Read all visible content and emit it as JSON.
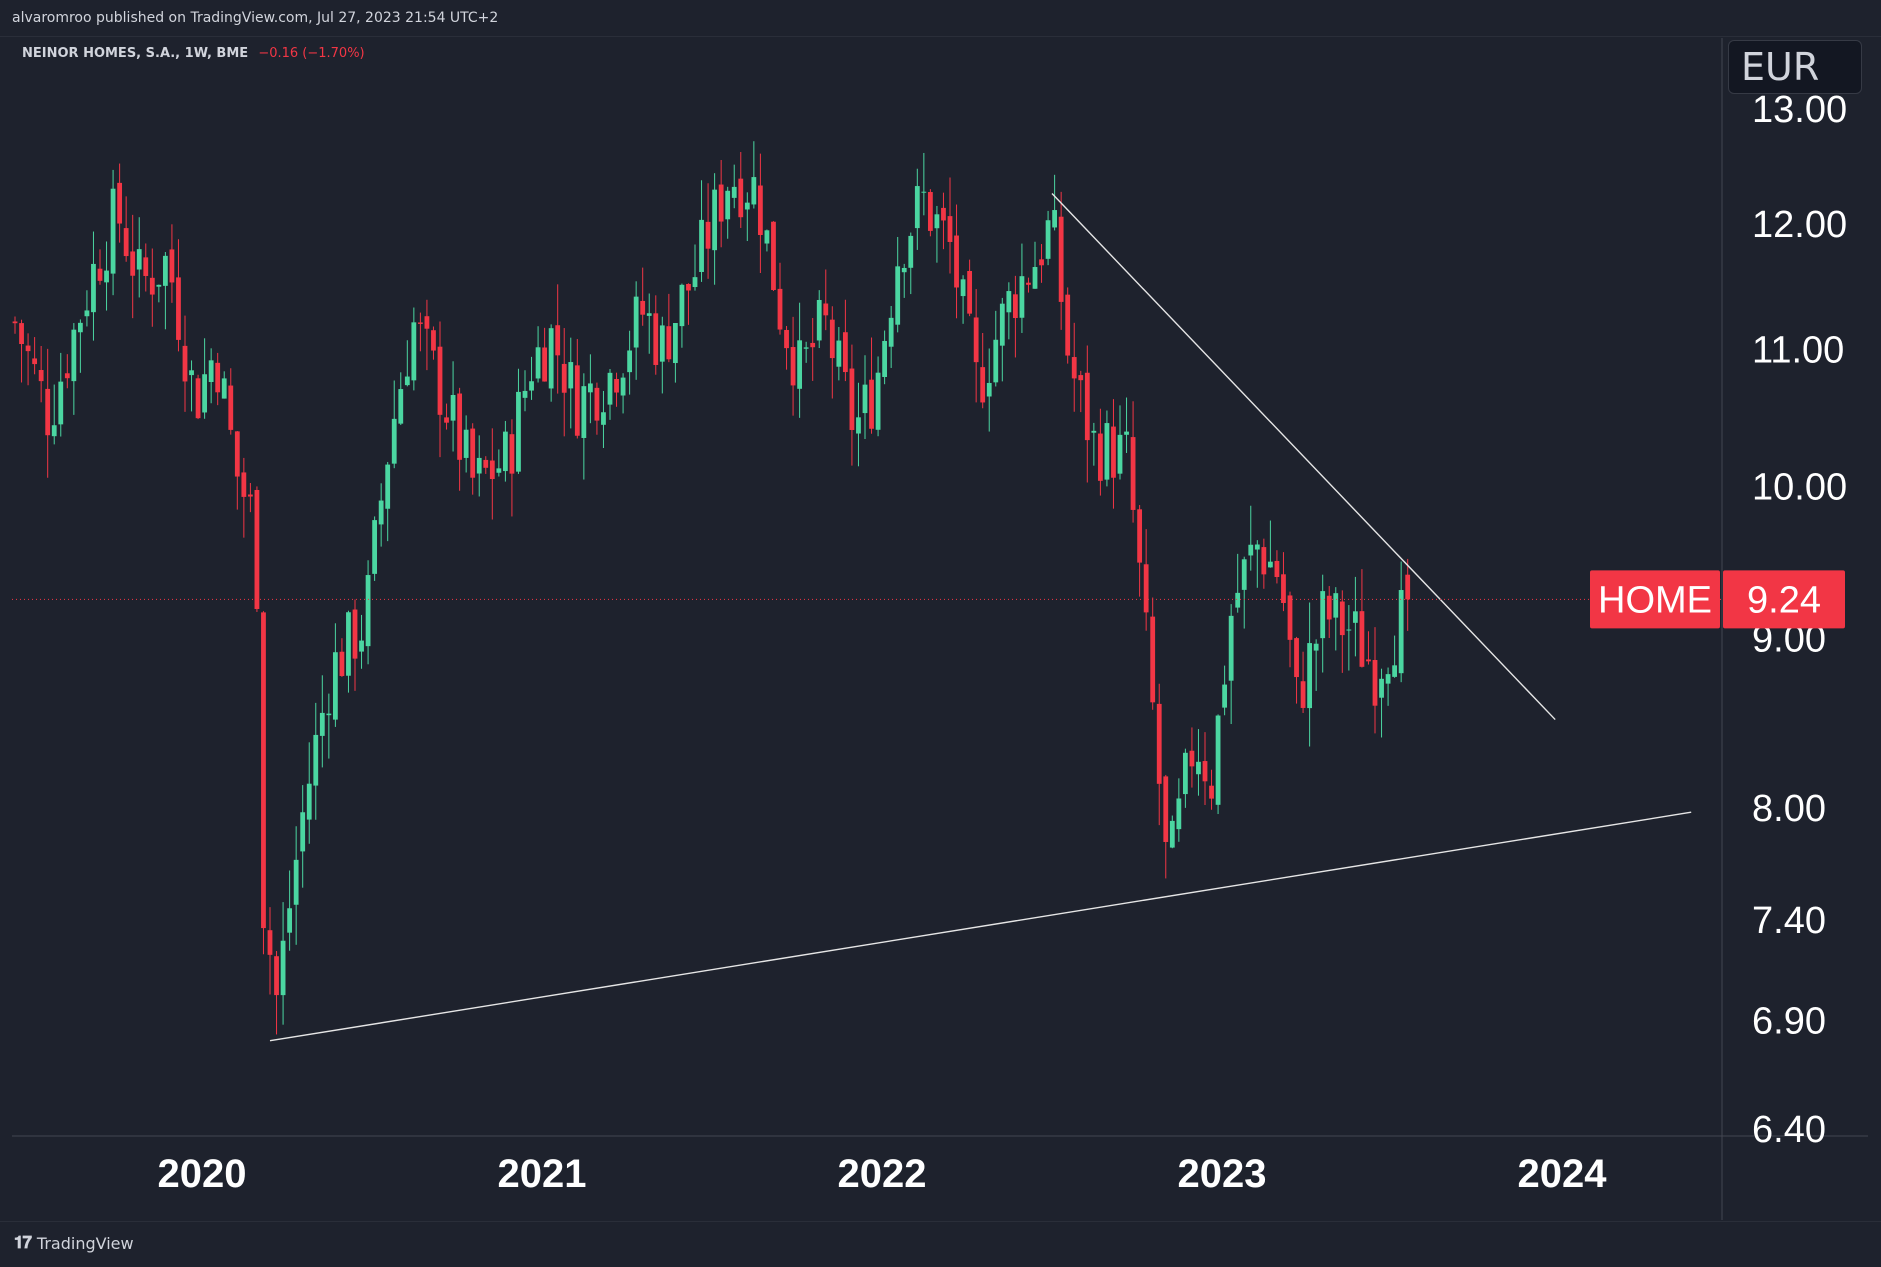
{
  "header": {
    "published": "alvaromroo published on TradingView.com, Jul 27, 2023 21:54 UTC+2"
  },
  "legend": {
    "symbol": "NEINOR HOMES, S.A., 1W, BME",
    "change": "−0.16 (−1.70%)"
  },
  "currency": "EUR",
  "footer": {
    "brand": "TradingView",
    "brand_icon": "tradingview-logo-icon"
  },
  "colors": {
    "background": "#1e222d",
    "up": "#4bd6a1",
    "down": "#f23645",
    "line": "#e6e6e6"
  },
  "chart_data": {
    "type": "candlestick",
    "interval": "1W",
    "y_scale": "log",
    "ylim": [
      6.4,
      13.2
    ],
    "xlim": [
      2019.45,
      2024.5
    ],
    "y_ticks": [
      "13.00",
      "12.00",
      "11.00",
      "10.00",
      "9.00",
      "8.00",
      "7.40",
      "6.90",
      "6.40"
    ],
    "y_tick_values": [
      13.0,
      12.0,
      11.0,
      10.0,
      9.0,
      8.0,
      7.4,
      6.9,
      6.4
    ],
    "x_ticks": [
      "2020",
      "2021",
      "2022",
      "2023",
      "2024"
    ],
    "x_tick_values": [
      2020,
      2021,
      2022,
      2023,
      2024
    ],
    "last_price": {
      "ticker": "HOME",
      "value": "9.24",
      "price": 9.24
    },
    "trendlines": [
      {
        "name": "descending-resistance",
        "points": [
          [
            2022.5,
            12.25
          ],
          [
            2023.98,
            8.5
          ]
        ]
      },
      {
        "name": "ascending-support",
        "points": [
          [
            2020.2,
            6.8
          ],
          [
            2024.38,
            7.97
          ]
        ]
      }
    ],
    "anchors": [
      [
        2019.45,
        11.2
      ],
      [
        2019.55,
        10.5
      ],
      [
        2019.68,
        11.6
      ],
      [
        2019.75,
        12.1
      ],
      [
        2019.82,
        11.5
      ],
      [
        2019.9,
        11.7
      ],
      [
        2019.98,
        10.6
      ],
      [
        2020.04,
        11.0
      ],
      [
        2020.1,
        10.1
      ],
      [
        2020.16,
        9.7
      ],
      [
        2020.17,
        7.6
      ],
      [
        2020.22,
        7.0
      ],
      [
        2020.3,
        8.0
      ],
      [
        2020.38,
        8.8
      ],
      [
        2020.48,
        9.1
      ],
      [
        2020.55,
        10.3
      ],
      [
        2020.62,
        11.2
      ],
      [
        2020.7,
        10.7
      ],
      [
        2020.8,
        10.0
      ],
      [
        2020.9,
        10.2
      ],
      [
        2020.97,
        10.9
      ],
      [
        2021.03,
        11.1
      ],
      [
        2021.1,
        10.6
      ],
      [
        2021.2,
        10.8
      ],
      [
        2021.3,
        11.3
      ],
      [
        2021.35,
        11.0
      ],
      [
        2021.45,
        11.6
      ],
      [
        2021.55,
        12.4
      ],
      [
        2021.63,
        12.3
      ],
      [
        2021.7,
        11.3
      ],
      [
        2021.76,
        10.8
      ],
      [
        2021.83,
        11.2
      ],
      [
        2021.92,
        10.4
      ],
      [
        2021.98,
        10.7
      ],
      [
        2022.05,
        11.8
      ],
      [
        2022.12,
        12.2
      ],
      [
        2022.2,
        11.8
      ],
      [
        2022.28,
        10.7
      ],
      [
        2022.38,
        11.4
      ],
      [
        2022.45,
        11.7
      ],
      [
        2022.5,
        12.0
      ],
      [
        2022.55,
        10.9
      ],
      [
        2022.62,
        10.3
      ],
      [
        2022.72,
        10.2
      ],
      [
        2022.78,
        8.9
      ],
      [
        2022.84,
        7.6
      ],
      [
        2022.92,
        8.4
      ],
      [
        2022.97,
        8.15
      ],
      [
        2023.03,
        9.2
      ],
      [
        2023.1,
        9.6
      ],
      [
        2023.17,
        9.4
      ],
      [
        2023.22,
        8.6
      ],
      [
        2023.3,
        9.15
      ],
      [
        2023.38,
        9.05
      ],
      [
        2023.45,
        8.8
      ],
      [
        2023.52,
        9.1
      ],
      [
        2023.56,
        9.24
      ]
    ]
  }
}
